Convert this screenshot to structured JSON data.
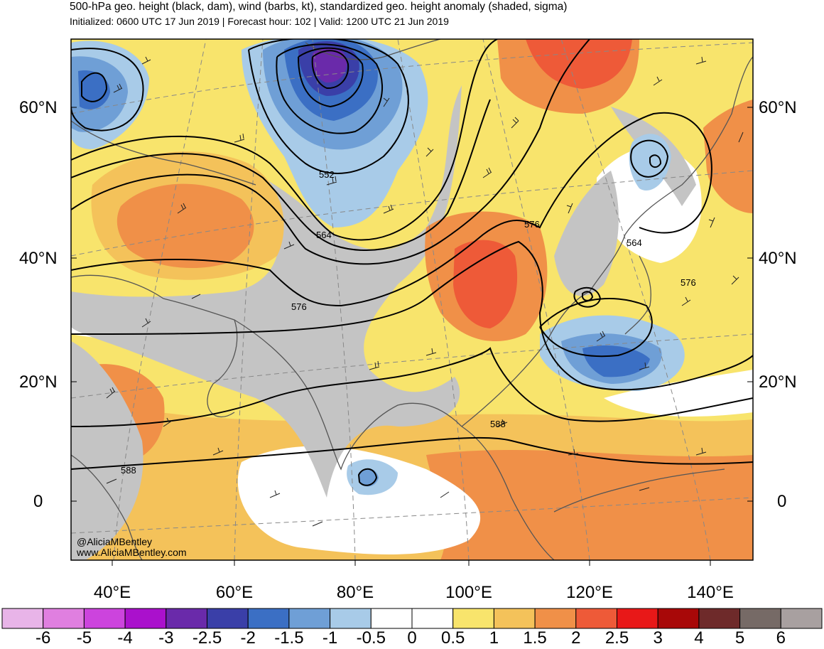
{
  "header": {
    "title": "500-hPa geo. height (black, dam), wind (barbs, kt), standardized geo. height anomaly (shaded, sigma)",
    "subtitle": "Initialized: 0600 UTC 17 Jun 2019 | Forecast hour: 102 | Valid: 1200 UTC 21 Jun 2019"
  },
  "map": {
    "lat_labels": [
      "60°N",
      "40°N",
      "20°N",
      "0"
    ],
    "lon_labels": [
      "40°E",
      "60°E",
      "80°E",
      "100°E",
      "120°E",
      "140°E"
    ],
    "contour_labels": [
      "552",
      "564",
      "576",
      "576",
      "564",
      "576",
      "588",
      "588"
    ],
    "credit_lines": [
      "@AliciaMBentley",
      "www.AliciaMBentley.com"
    ]
  },
  "colorbar": {
    "labels": [
      "-6",
      "-5",
      "-4",
      "-3",
      "-2.5",
      "-2",
      "-1.5",
      "-1",
      "-0.5",
      "0",
      "0.5",
      "1",
      "1.5",
      "2",
      "2.5",
      "3",
      "4",
      "5",
      "6"
    ],
    "colors": [
      "#e8b4e8",
      "#e07fe0",
      "#cc44dd",
      "#aa11cc",
      "#6a2aaa",
      "#3a3fa8",
      "#3b6fc4",
      "#6f9fd6",
      "#a8cbe8",
      "#ffffff",
      "#ffffff",
      "#f8e46c",
      "#f4c25a",
      "#f09048",
      "#ee5a38",
      "#e81818",
      "#a80808",
      "#6e2a2a",
      "#766a66",
      "#a8a0a0"
    ]
  }
}
